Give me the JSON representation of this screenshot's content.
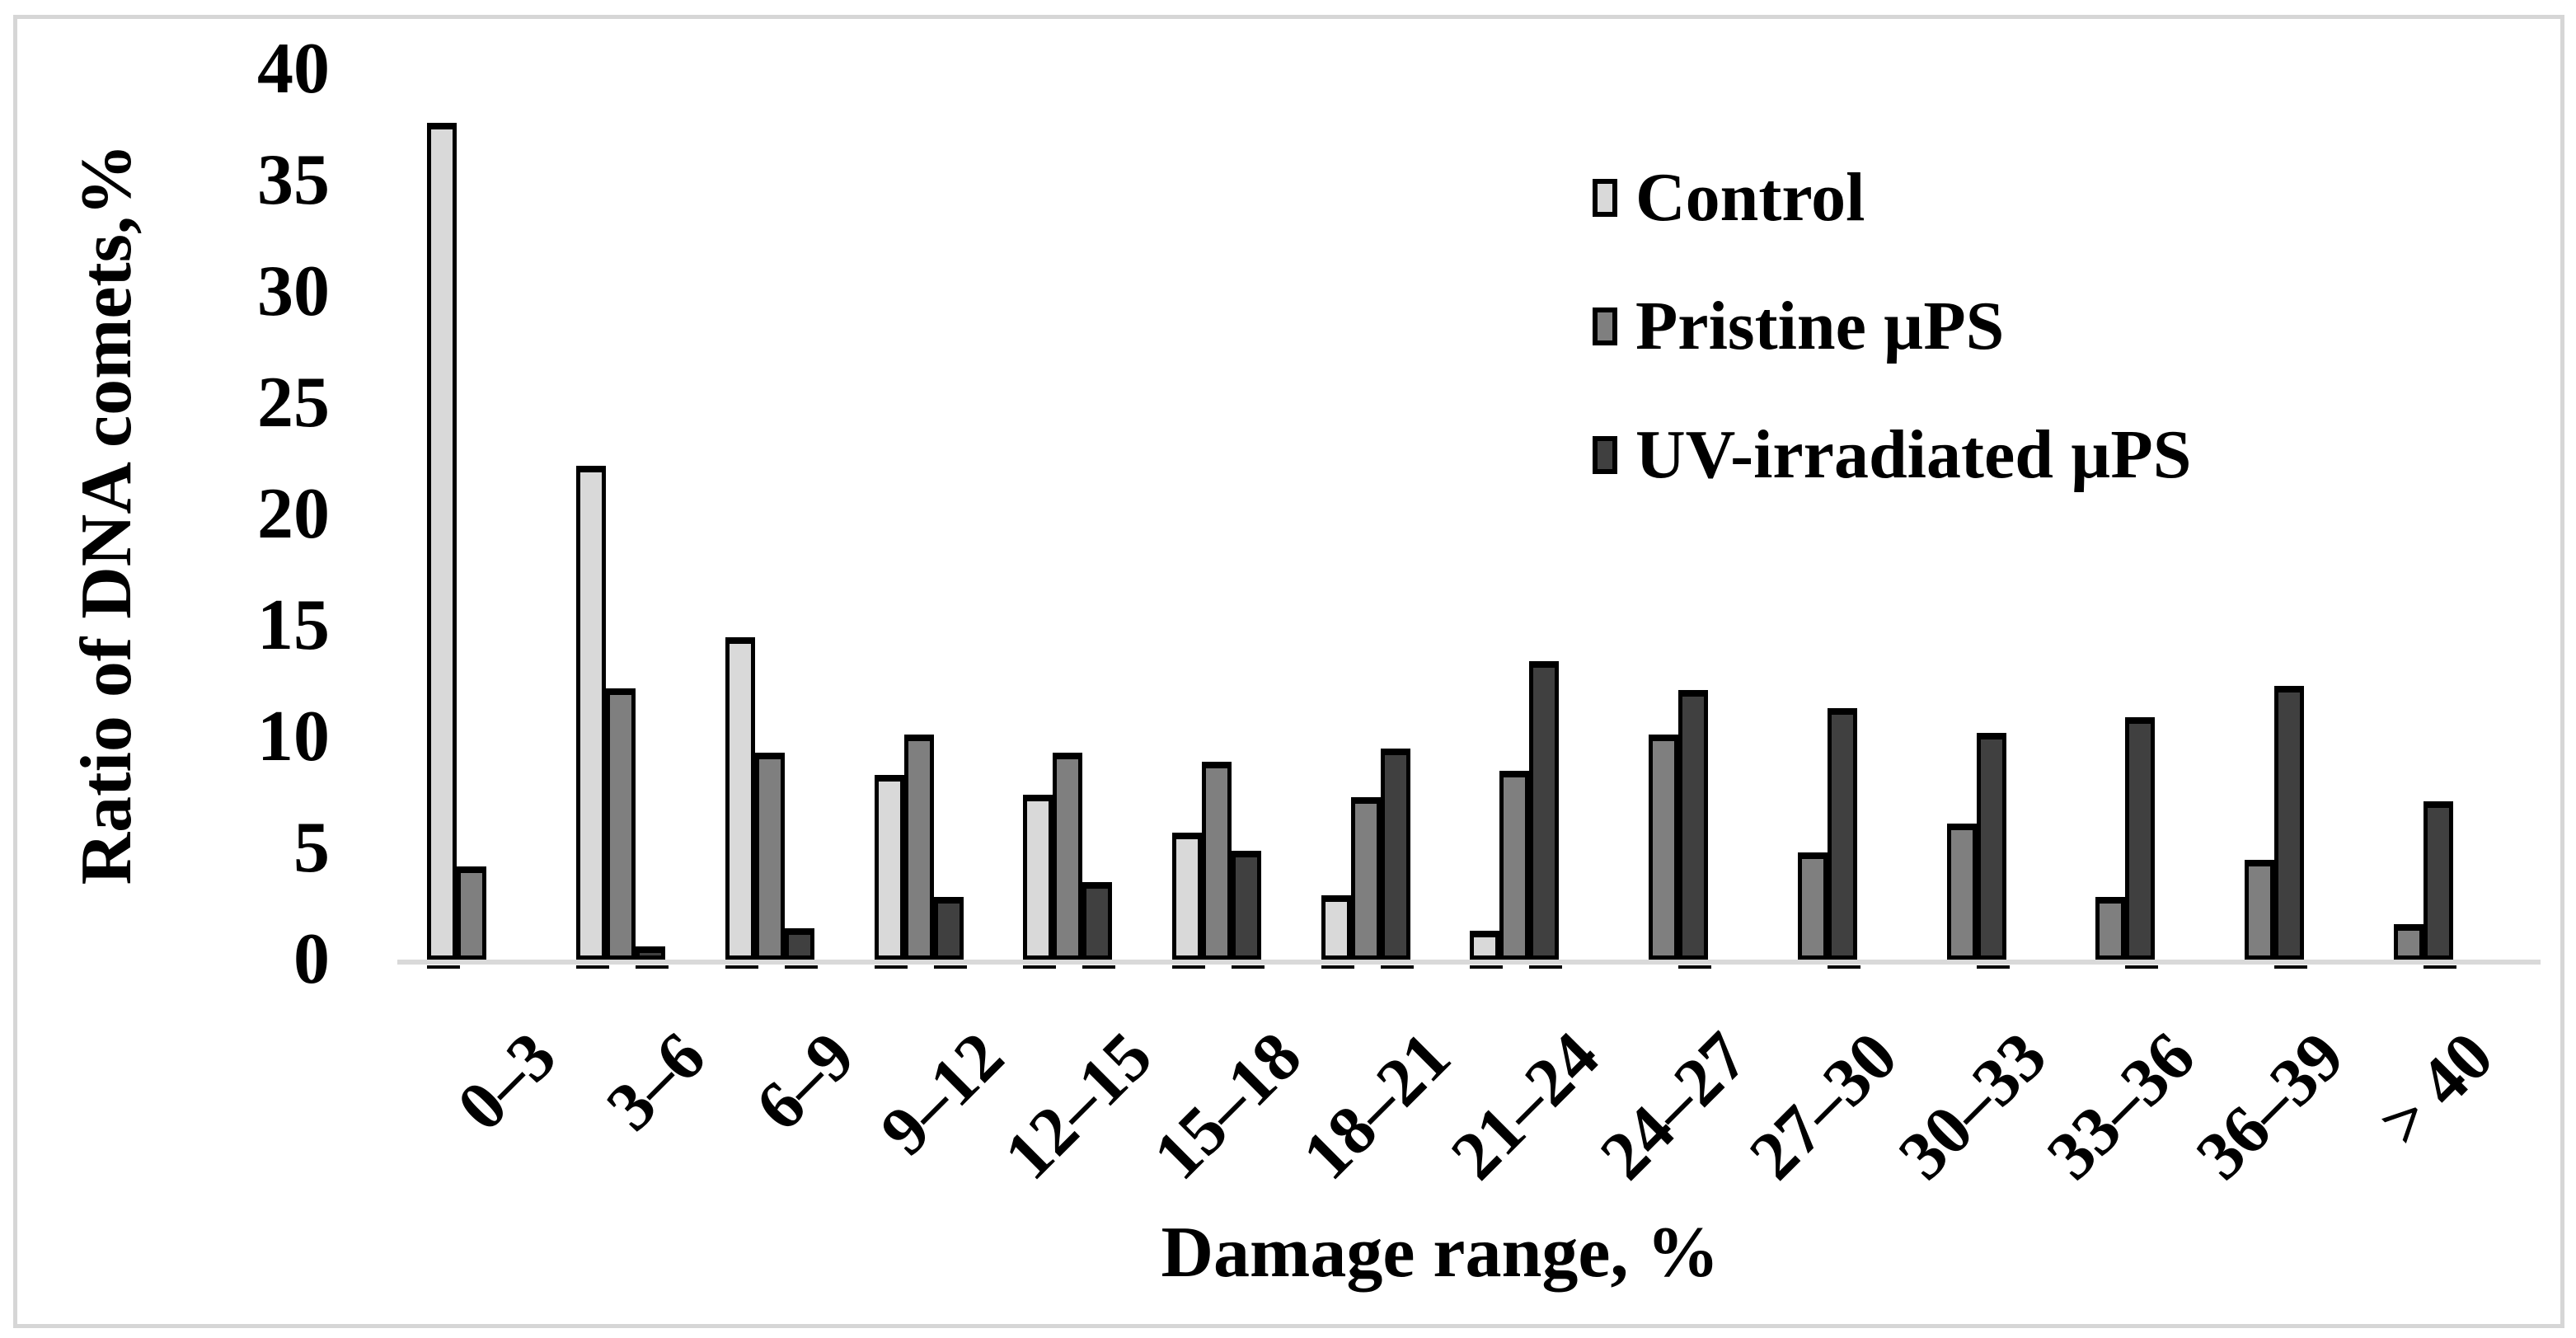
{
  "chart_data": {
    "type": "bar",
    "title": "",
    "xlabel": "Damage range, %",
    "ylabel": "Ratio of DNA comets,%",
    "ylim": [
      0,
      40
    ],
    "yticks": [
      0,
      5,
      10,
      15,
      20,
      25,
      30,
      35,
      40
    ],
    "grid": false,
    "legend_position": "upper right inside plot",
    "categories": [
      "0–3",
      "3–6",
      "6–9",
      "9–12",
      "12–15",
      "15–18",
      "18–21",
      "21–24",
      "24–27",
      "27–30",
      "30–33",
      "33–36",
      "36–39",
      "> 40"
    ],
    "series": [
      {
        "name": "Control",
        "color": "#d9d9d9",
        "shadow_tick": true,
        "values": [
          37.6,
          22.2,
          14.5,
          8.3,
          7.4,
          5.7,
          2.9,
          1.3,
          0,
          0,
          0,
          0,
          0,
          0
        ]
      },
      {
        "name": "Pristine µPS",
        "color": "#7f7f7f",
        "shadow_tick": false,
        "values": [
          4.2,
          12.2,
          9.3,
          10.1,
          9.3,
          8.9,
          7.3,
          8.5,
          10.1,
          4.8,
          6.1,
          2.8,
          4.5,
          1.6
        ]
      },
      {
        "name": "UV-irradiated µPS",
        "color": "#404040",
        "shadow_tick": true,
        "values": [
          0,
          0.6,
          1.4,
          2.8,
          3.5,
          4.9,
          9.5,
          13.4,
          12.1,
          11.3,
          10.2,
          10.9,
          12.3,
          7.1
        ]
      }
    ],
    "axis_line_color": "#d9d9d9",
    "frame_color": "#d6d6d6"
  }
}
